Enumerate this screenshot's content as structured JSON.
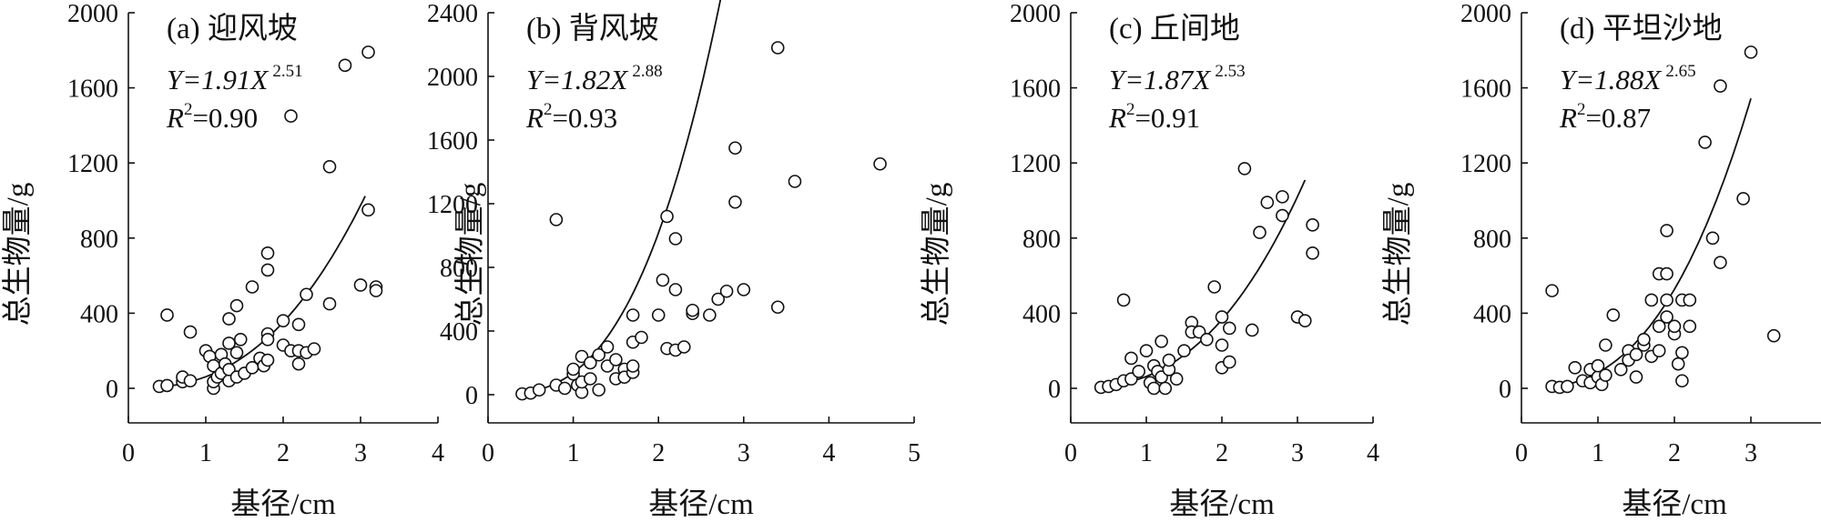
{
  "chart_data": [
    {
      "type": "scatter",
      "title": "(a) 迎风坡",
      "xlabel": "基径/cm",
      "ylabel": "总生物量/g",
      "xlim": [
        0,
        4
      ],
      "ylim": [
        -100,
        2000
      ],
      "xticks": [
        0,
        1,
        2,
        3,
        4
      ],
      "yticks": [
        0,
        400,
        800,
        1200,
        1600,
        2000
      ],
      "x_tick_labels": [
        "0",
        "1",
        "2",
        "3",
        "4"
      ],
      "y_tick_labels": [
        "0",
        "400",
        "800",
        "1200",
        "1600",
        "2000"
      ],
      "equation": {
        "prefix": "Y=1.91X",
        "exponent": "2.51"
      },
      "r2": {
        "symbol": "R",
        "sup": "2",
        "value": "=0.90"
      },
      "fit": {
        "a": 1.91,
        "b": 2.51,
        "x_start": 0.4,
        "x_end": 3.06
      },
      "points": [
        [
          0.4,
          10
        ],
        [
          0.5,
          15
        ],
        [
          0.5,
          390
        ],
        [
          0.7,
          35
        ],
        [
          0.7,
          60
        ],
        [
          0.8,
          40
        ],
        [
          0.8,
          300
        ],
        [
          1.0,
          200
        ],
        [
          1.05,
          170
        ],
        [
          1.1,
          0
        ],
        [
          1.1,
          35
        ],
        [
          1.1,
          120
        ],
        [
          1.15,
          60
        ],
        [
          1.2,
          180
        ],
        [
          1.2,
          80
        ],
        [
          1.25,
          130
        ],
        [
          1.3,
          40
        ],
        [
          1.3,
          100
        ],
        [
          1.3,
          240
        ],
        [
          1.3,
          370
        ],
        [
          1.4,
          60
        ],
        [
          1.4,
          190
        ],
        [
          1.4,
          440
        ],
        [
          1.45,
          260
        ],
        [
          1.5,
          80
        ],
        [
          1.6,
          110
        ],
        [
          1.6,
          540
        ],
        [
          1.7,
          160
        ],
        [
          1.75,
          120
        ],
        [
          1.8,
          630
        ],
        [
          1.8,
          720
        ],
        [
          1.8,
          290
        ],
        [
          1.8,
          150
        ],
        [
          1.8,
          260
        ],
        [
          2.0,
          360
        ],
        [
          2.0,
          230
        ],
        [
          2.1,
          1450
        ],
        [
          2.1,
          200
        ],
        [
          2.2,
          200
        ],
        [
          2.2,
          130
        ],
        [
          2.2,
          340
        ],
        [
          2.3,
          500
        ],
        [
          2.3,
          190
        ],
        [
          2.4,
          210
        ],
        [
          2.6,
          1180
        ],
        [
          2.6,
          450
        ],
        [
          2.8,
          1720
        ],
        [
          3.0,
          550
        ],
        [
          3.1,
          1790
        ],
        [
          3.1,
          950
        ],
        [
          3.2,
          540
        ],
        [
          3.2,
          520
        ]
      ]
    },
    {
      "type": "scatter",
      "title": "(b) 背风坡",
      "xlabel": "基径/cm",
      "ylabel": "总生物量/g",
      "xlim": [
        0,
        5
      ],
      "ylim": [
        -100,
        2400
      ],
      "xticks": [
        0,
        1,
        2,
        3,
        4,
        5
      ],
      "yticks": [
        0,
        400,
        800,
        1200,
        1600,
        2000,
        2400
      ],
      "x_tick_labels": [
        "0",
        "1",
        "2",
        "3",
        "4",
        "5"
      ],
      "y_tick_labels": [
        "0",
        "400",
        "800",
        "1200",
        "1600",
        "2000",
        "2400"
      ],
      "equation": {
        "prefix": "Y=1.82X",
        "exponent": "2.88"
      },
      "r2": {
        "symbol": "R",
        "sup": "2",
        "value": "=0.93"
      },
      "fit": {
        "a": 1.82,
        "b": 2.88,
        "x_start": 0.4,
        "x_end": 3.55
      },
      "points": [
        [
          0.4,
          5
        ],
        [
          0.5,
          10
        ],
        [
          0.6,
          30
        ],
        [
          0.8,
          1100
        ],
        [
          0.8,
          60
        ],
        [
          0.9,
          40
        ],
        [
          1.0,
          130
        ],
        [
          1.0,
          160
        ],
        [
          1.05,
          60
        ],
        [
          1.1,
          15
        ],
        [
          1.1,
          80
        ],
        [
          1.1,
          240
        ],
        [
          1.2,
          100
        ],
        [
          1.2,
          200
        ],
        [
          1.3,
          30
        ],
        [
          1.3,
          250
        ],
        [
          1.4,
          180
        ],
        [
          1.4,
          300
        ],
        [
          1.5,
          100
        ],
        [
          1.5,
          220
        ],
        [
          1.6,
          160
        ],
        [
          1.6,
          110
        ],
        [
          1.7,
          140
        ],
        [
          1.7,
          180
        ],
        [
          1.7,
          500
        ],
        [
          1.7,
          330
        ],
        [
          1.8,
          360
        ],
        [
          2.0,
          500
        ],
        [
          2.05,
          720
        ],
        [
          2.1,
          1120
        ],
        [
          2.1,
          290
        ],
        [
          2.2,
          980
        ],
        [
          2.2,
          660
        ],
        [
          2.2,
          280
        ],
        [
          2.3,
          300
        ],
        [
          2.4,
          510
        ],
        [
          2.4,
          530
        ],
        [
          2.6,
          500
        ],
        [
          2.7,
          600
        ],
        [
          2.8,
          650
        ],
        [
          2.9,
          1550
        ],
        [
          2.9,
          1210
        ],
        [
          3.0,
          660
        ],
        [
          3.4,
          2180
        ],
        [
          3.4,
          550
        ],
        [
          3.6,
          1340
        ],
        [
          4.6,
          1450
        ]
      ]
    },
    {
      "type": "scatter",
      "title": "(c) 丘间地",
      "xlabel": "基径/cm",
      "ylabel": "总生物量/g",
      "xlim": [
        0,
        4
      ],
      "ylim": [
        -100,
        2000
      ],
      "xticks": [
        0,
        1,
        2,
        3,
        4
      ],
      "yticks": [
        0,
        400,
        800,
        1200,
        1600,
        2000
      ],
      "x_tick_labels": [
        "0",
        "1",
        "2",
        "3",
        "4"
      ],
      "y_tick_labels": [
        "0",
        "400",
        "800",
        "1200",
        "1600",
        "2000"
      ],
      "equation": {
        "prefix": "Y=1.87X",
        "exponent": "2.53"
      },
      "r2": {
        "symbol": "R",
        "sup": "2",
        "value": "=0.91"
      },
      "fit": {
        "a": 1.87,
        "b": 2.53,
        "x_start": 0.4,
        "x_end": 3.1
      },
      "points": [
        [
          0.4,
          5
        ],
        [
          0.5,
          10
        ],
        [
          0.6,
          20
        ],
        [
          0.7,
          40
        ],
        [
          0.7,
          470
        ],
        [
          0.8,
          160
        ],
        [
          0.8,
          50
        ],
        [
          0.9,
          90
        ],
        [
          1.0,
          200
        ],
        [
          1.05,
          30
        ],
        [
          1.1,
          0
        ],
        [
          1.1,
          120
        ],
        [
          1.15,
          90
        ],
        [
          1.2,
          60
        ],
        [
          1.2,
          250
        ],
        [
          1.25,
          0
        ],
        [
          1.3,
          100
        ],
        [
          1.3,
          150
        ],
        [
          1.4,
          50
        ],
        [
          1.5,
          200
        ],
        [
          1.6,
          350
        ],
        [
          1.6,
          300
        ],
        [
          1.7,
          300
        ],
        [
          1.8,
          260
        ],
        [
          1.9,
          540
        ],
        [
          2.0,
          380
        ],
        [
          2.0,
          230
        ],
        [
          2.0,
          110
        ],
        [
          2.1,
          140
        ],
        [
          2.1,
          320
        ],
        [
          2.3,
          1170
        ],
        [
          2.4,
          310
        ],
        [
          2.5,
          830
        ],
        [
          2.6,
          990
        ],
        [
          2.8,
          920
        ],
        [
          2.8,
          1020
        ],
        [
          3.0,
          380
        ],
        [
          3.1,
          360
        ],
        [
          3.2,
          870
        ],
        [
          3.2,
          720
        ]
      ]
    },
    {
      "type": "scatter",
      "title": "(d) 平坦沙地",
      "xlabel": "基径/cm",
      "ylabel": "总生物量/g",
      "xlim": [
        0,
        4
      ],
      "ylim": [
        -100,
        2000
      ],
      "xticks": [
        0,
        1,
        2,
        3,
        4
      ],
      "yticks": [
        0,
        400,
        800,
        1200,
        1600,
        2000
      ],
      "x_tick_labels": [
        "0",
        "1",
        "2",
        "3",
        "4"
      ],
      "y_tick_labels": [
        "0",
        "400",
        "800",
        "1200",
        "1600",
        "2000"
      ],
      "equation": {
        "prefix": "Y=1.88X",
        "exponent": "2.65"
      },
      "r2": {
        "symbol": "R",
        "sup": "2",
        "value": "=0.87"
      },
      "fit": {
        "a": 1.88,
        "b": 2.65,
        "x_start": 0.4,
        "x_end": 3.0
      },
      "points": [
        [
          0.4,
          520
        ],
        [
          0.4,
          10
        ],
        [
          0.5,
          5
        ],
        [
          0.6,
          10
        ],
        [
          0.7,
          110
        ],
        [
          0.8,
          40
        ],
        [
          0.9,
          30
        ],
        [
          0.9,
          100
        ],
        [
          1.0,
          60
        ],
        [
          1.0,
          120
        ],
        [
          1.05,
          20
        ],
        [
          1.1,
          70
        ],
        [
          1.1,
          230
        ],
        [
          1.2,
          390
        ],
        [
          1.3,
          100
        ],
        [
          1.4,
          200
        ],
        [
          1.4,
          150
        ],
        [
          1.5,
          60
        ],
        [
          1.5,
          180
        ],
        [
          1.6,
          230
        ],
        [
          1.6,
          260
        ],
        [
          1.7,
          170
        ],
        [
          1.7,
          470
        ],
        [
          1.8,
          610
        ],
        [
          1.8,
          330
        ],
        [
          1.8,
          200
        ],
        [
          1.9,
          610
        ],
        [
          1.9,
          380
        ],
        [
          1.9,
          470
        ],
        [
          1.9,
          840
        ],
        [
          2.0,
          290
        ],
        [
          2.0,
          330
        ],
        [
          2.05,
          130
        ],
        [
          2.1,
          190
        ],
        [
          2.1,
          470
        ],
        [
          2.1,
          40
        ],
        [
          2.2,
          470
        ],
        [
          2.2,
          330
        ],
        [
          2.4,
          1310
        ],
        [
          2.5,
          800
        ],
        [
          2.6,
          670
        ],
        [
          2.6,
          1610
        ],
        [
          2.9,
          1010
        ],
        [
          3.0,
          1790
        ],
        [
          3.3,
          280
        ]
      ]
    }
  ]
}
